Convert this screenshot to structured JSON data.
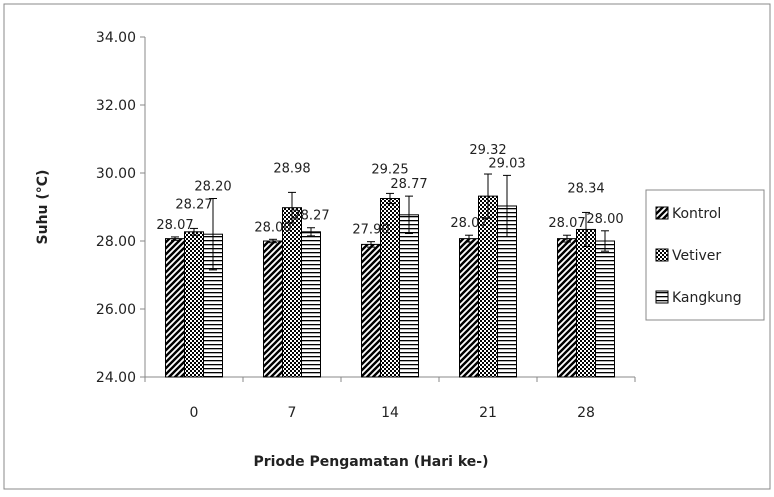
{
  "chart_data": {
    "type": "bar",
    "title": "",
    "xlabel": "Priode Pengamatan (Hari ke-)",
    "ylabel": "Suhu (°C)",
    "categories": [
      "0",
      "7",
      "14",
      "21",
      "28"
    ],
    "ylim": [
      24,
      34
    ],
    "yticks": [
      "24.00",
      "26.00",
      "28.00",
      "30.00",
      "32.00",
      "34.00"
    ],
    "grid": false,
    "legend_position": "right",
    "series": [
      {
        "name": "Kontrol",
        "pattern": "diagonal",
        "values": [
          28.07,
          28.0,
          27.9,
          28.07,
          28.07
        ],
        "labels": [
          "28.07",
          "28.00",
          "27.90",
          "28.07",
          "28.07"
        ],
        "errors": [
          0.05,
          0.05,
          0.08,
          0.1,
          0.1
        ]
      },
      {
        "name": "Vetiver",
        "pattern": "checker",
        "values": [
          28.27,
          28.98,
          29.25,
          29.32,
          28.34
        ],
        "labels": [
          "28.27",
          "28.98",
          "29.25",
          "29.32",
          "28.34"
        ],
        "errors": [
          0.1,
          0.45,
          0.15,
          0.65,
          0.5
        ]
      },
      {
        "name": "Kangkung",
        "pattern": "horizontal",
        "values": [
          28.2,
          28.27,
          28.77,
          29.03,
          28.0
        ],
        "labels": [
          "28.20",
          "28.27",
          "28.77",
          "29.03",
          "28.00"
        ],
        "errors": [
          1.05,
          0.12,
          0.55,
          0.9,
          0.3
        ]
      }
    ]
  }
}
